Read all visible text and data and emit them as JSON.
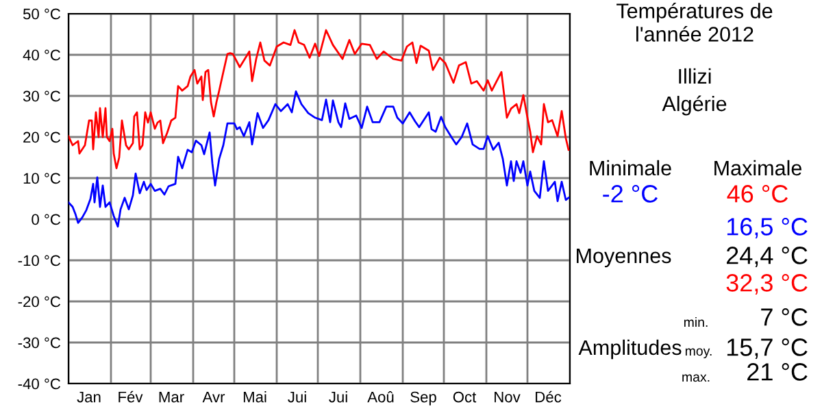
{
  "chart_data": {
    "type": "line",
    "title": "Températures de\nl'année 2012",
    "annotations": [
      "Illizi",
      "Algérie",
      "Minimale",
      "Maximale",
      "-2 °C",
      "46 °C",
      "16,5 °C",
      "Moyennes",
      "24,4 °C",
      "32,3 °C",
      "min.",
      "7 °C",
      "Amplitudes",
      "moy.",
      "15,7 °C",
      "max.",
      "21 °C"
    ],
    "xlim": [
      "2012-01-01",
      "2013-01-01"
    ],
    "ylim": [
      -40,
      50
    ],
    "yticks": [
      {
        "value": -40,
        "label": "-40 °C"
      },
      {
        "value": -30,
        "label": "-30 °C"
      },
      {
        "value": -20,
        "label": "-20 °C"
      },
      {
        "value": -10,
        "label": "-10 °C"
      },
      {
        "value": 0,
        "label": "0 °C"
      },
      {
        "value": 10,
        "label": "10 °C"
      },
      {
        "value": 20,
        "label": "20 °C"
      },
      {
        "value": 30,
        "label": "30 °C"
      },
      {
        "value": 40,
        "label": "40 °C"
      },
      {
        "value": 50,
        "label": "50 °C"
      }
    ],
    "xticks": [
      {
        "value": "2012-01-01",
        "label": null
      },
      {
        "value": "2012-01-16",
        "label": "Jan"
      },
      {
        "value": "2012-02-01",
        "label": null
      },
      {
        "value": "2012-02-15",
        "label": "Fév"
      },
      {
        "value": "2012-03-01",
        "label": null
      },
      {
        "value": "2012-03-16",
        "label": "Mar"
      },
      {
        "value": "2012-04-01",
        "label": null
      },
      {
        "value": "2012-04-16",
        "label": "Avr"
      },
      {
        "value": "2012-05-01",
        "label": null
      },
      {
        "value": "2012-05-16",
        "label": "Mai"
      },
      {
        "value": "2012-06-01",
        "label": null
      },
      {
        "value": "2012-06-16",
        "label": "Jui"
      },
      {
        "value": "2012-07-01",
        "label": null
      },
      {
        "value": "2012-07-16",
        "label": "Jui"
      },
      {
        "value": "2012-08-01",
        "label": null
      },
      {
        "value": "2012-08-16",
        "label": "Aoû"
      },
      {
        "value": "2012-09-01",
        "label": null
      },
      {
        "value": "2012-09-16",
        "label": "Sep"
      },
      {
        "value": "2012-10-01",
        "label": null
      },
      {
        "value": "2012-10-16",
        "label": "Oct"
      },
      {
        "value": "2012-11-01",
        "label": null
      },
      {
        "value": "2012-11-16",
        "label": "Nov"
      },
      {
        "value": "2012-12-01",
        "label": null
      },
      {
        "value": "2012-12-16",
        "label": "Déc"
      },
      {
        "value": "2013-01-01",
        "label": null
      }
    ],
    "grid": true,
    "line_style": "solid",
    "marker": "none",
    "series": [
      {
        "color": "#ff0000",
        "x": [
          "2012-01-01",
          "2012-01-04",
          "2012-01-08",
          "2012-01-09",
          "2012-01-13",
          "2012-01-16",
          "2012-01-18",
          "2012-01-19",
          "2012-01-21",
          "2012-01-23",
          "2012-01-24",
          "2012-01-26",
          "2012-01-28",
          "2012-01-29",
          "2012-01-31",
          "2012-02-02",
          "2012-02-03",
          "2012-02-05",
          "2012-02-07",
          "2012-02-09",
          "2012-02-12",
          "2012-02-14",
          "2012-02-17",
          "2012-02-18",
          "2012-02-20",
          "2012-02-22",
          "2012-02-24",
          "2012-02-26",
          "2012-02-28",
          "2012-03-01",
          "2012-03-04",
          "2012-03-06",
          "2012-03-08",
          "2012-03-10",
          "2012-03-13",
          "2012-03-16",
          "2012-03-19",
          "2012-03-21",
          "2012-03-24",
          "2012-03-28",
          "2012-03-30",
          "2012-04-02",
          "2012-04-04",
          "2012-04-07",
          "2012-04-08",
          "2012-04-10",
          "2012-04-12",
          "2012-04-14",
          "2012-04-16",
          "2012-04-18",
          "2012-04-20",
          "2012-04-23",
          "2012-04-26",
          "2012-04-28",
          "2012-04-30",
          "2012-05-05",
          "2012-05-12",
          "2012-05-14",
          "2012-05-17",
          "2012-05-20",
          "2012-05-23",
          "2012-05-27",
          "2012-06-01",
          "2012-06-06",
          "2012-06-11",
          "2012-06-14",
          "2012-06-17",
          "2012-06-21",
          "2012-06-25",
          "2012-06-29",
          "2012-07-02",
          "2012-07-07",
          "2012-07-12",
          "2012-07-19",
          "2012-07-24",
          "2012-07-28",
          "2012-08-02",
          "2012-08-08",
          "2012-08-13",
          "2012-08-18",
          "2012-08-25",
          "2012-08-31",
          "2012-09-04",
          "2012-09-08",
          "2012-09-11",
          "2012-09-14",
          "2012-09-20",
          "2012-09-23",
          "2012-09-28",
          "2012-10-02",
          "2012-10-08",
          "2012-10-12",
          "2012-10-17",
          "2012-10-21",
          "2012-10-25",
          "2012-10-30",
          "2012-11-02",
          "2012-11-05",
          "2012-11-12",
          "2012-11-14",
          "2012-11-16",
          "2012-11-19",
          "2012-11-23",
          "2012-11-25",
          "2012-11-28",
          "2012-12-01",
          "2012-12-03",
          "2012-12-05",
          "2012-12-08",
          "2012-12-11",
          "2012-12-13",
          "2012-12-16",
          "2012-12-19",
          "2012-12-23",
          "2012-12-26",
          "2012-12-29",
          "2012-12-31"
        ],
        "values": [
          20.2,
          18,
          19,
          16,
          18,
          24,
          24,
          17,
          26,
          20,
          27,
          20,
          27,
          20,
          19,
          22,
          16,
          12.4,
          15,
          24,
          18,
          17,
          18.5,
          25,
          26,
          17,
          18,
          26,
          23.5,
          26,
          22,
          23.5,
          24,
          18.5,
          21,
          24,
          24.7,
          32.4,
          31.3,
          32.4,
          34.7,
          36.3,
          33,
          34.7,
          29,
          35.8,
          36.3,
          28.5,
          25,
          28.5,
          31.3,
          35.8,
          40.2,
          40.4,
          40.2,
          37,
          40.8,
          33.6,
          39,
          43,
          38.6,
          37.4,
          42,
          43,
          42.4,
          46,
          43,
          42.4,
          39.3,
          42.7,
          39.7,
          46,
          42.4,
          39,
          43.6,
          40.2,
          42.7,
          42.4,
          39,
          40.8,
          39,
          38.6,
          42,
          43,
          38,
          42.2,
          41,
          36.3,
          39.3,
          38,
          33.2,
          37.4,
          38.2,
          33,
          33.6,
          31.3,
          33.8,
          31.3,
          35.8,
          30.2,
          24.7,
          26.9,
          28,
          25.8,
          30.2,
          24.7,
          21.3,
          16.3,
          20.2,
          18.2,
          28,
          23.6,
          24.1,
          20.2,
          26.3,
          19.7,
          16.9
        ]
      },
      {
        "color": "#0000ff",
        "x": [
          "2012-01-01",
          "2012-01-04",
          "2012-01-06",
          "2012-01-08",
          "2012-01-11",
          "2012-01-14",
          "2012-01-17",
          "2012-01-19",
          "2012-01-20",
          "2012-01-22",
          "2012-01-24",
          "2012-01-26",
          "2012-01-28",
          "2012-01-31",
          "2012-02-03",
          "2012-02-06",
          "2012-02-08",
          "2012-02-11",
          "2012-02-14",
          "2012-02-17",
          "2012-02-19",
          "2012-02-22",
          "2012-02-25",
          "2012-02-27",
          "2012-03-01",
          "2012-03-04",
          "2012-03-08",
          "2012-03-11",
          "2012-03-14",
          "2012-03-19",
          "2012-03-21",
          "2012-03-24",
          "2012-03-28",
          "2012-03-31",
          "2012-04-03",
          "2012-04-07",
          "2012-04-09",
          "2012-04-13",
          "2012-04-15",
          "2012-04-17",
          "2012-04-20",
          "2012-04-23",
          "2012-04-26",
          "2012-05-01",
          "2012-05-03",
          "2012-05-05",
          "2012-05-08",
          "2012-05-12",
          "2012-05-14",
          "2012-05-18",
          "2012-05-22",
          "2012-05-26",
          "2012-05-31",
          "2012-06-04",
          "2012-06-09",
          "2012-06-12",
          "2012-06-15",
          "2012-06-19",
          "2012-06-24",
          "2012-06-29",
          "2012-07-04",
          "2012-07-07",
          "2012-07-10",
          "2012-07-12",
          "2012-07-16",
          "2012-07-18",
          "2012-07-21",
          "2012-07-24",
          "2012-07-29",
          "2012-08-02",
          "2012-08-06",
          "2012-08-10",
          "2012-08-15",
          "2012-08-20",
          "2012-08-25",
          "2012-08-28",
          "2012-09-01",
          "2012-09-06",
          "2012-09-10",
          "2012-09-13",
          "2012-09-20",
          "2012-09-22",
          "2012-09-25",
          "2012-09-29",
          "2012-10-02",
          "2012-10-07",
          "2012-10-10",
          "2012-10-14",
          "2012-10-18",
          "2012-10-22",
          "2012-10-27",
          "2012-10-30",
          "2012-11-02",
          "2012-11-06",
          "2012-11-10",
          "2012-11-13",
          "2012-11-16",
          "2012-11-19",
          "2012-11-21",
          "2012-11-23",
          "2012-11-26",
          "2012-11-28",
          "2012-12-01",
          "2012-12-03",
          "2012-12-06",
          "2012-12-10",
          "2012-12-13",
          "2012-12-16",
          "2012-12-21",
          "2012-12-23",
          "2012-12-26",
          "2012-12-29",
          "2012-12-31"
        ],
        "values": [
          4.1,
          3,
          1.3,
          -0.9,
          0.4,
          2.2,
          4.9,
          8.6,
          4.1,
          10.2,
          3,
          8.2,
          3,
          4.1,
          0.8,
          -1.8,
          2.4,
          5.2,
          2.4,
          5.8,
          11.1,
          6.3,
          9.1,
          7.1,
          8.6,
          6.9,
          7.4,
          6,
          8,
          8.6,
          15.2,
          12.4,
          16.9,
          16.3,
          19.1,
          18,
          15.8,
          21.1,
          13.6,
          8.2,
          14.7,
          18,
          23.3,
          23.3,
          21.9,
          22.4,
          20.2,
          23.6,
          18.2,
          25.8,
          22.2,
          24.1,
          28,
          26.3,
          28,
          26,
          31.1,
          28,
          25.8,
          24.7,
          24.1,
          29.1,
          23.6,
          28.9,
          23.6,
          22.4,
          28.2,
          24.4,
          25.2,
          22.2,
          27.4,
          23.6,
          23.6,
          27.4,
          27.4,
          24.7,
          23.3,
          26,
          23.8,
          22.4,
          26,
          21.9,
          21.3,
          24.9,
          22.4,
          19.7,
          18.2,
          20,
          23.3,
          18.2,
          17.1,
          17.1,
          20.2,
          16.9,
          18.6,
          14.7,
          8.2,
          14.1,
          9.3,
          14.1,
          11.3,
          14.1,
          8.2,
          11.6,
          6.9,
          5.2,
          14.1,
          6.9,
          9.1,
          4.4,
          9.1,
          4.7,
          5.2
        ]
      }
    ]
  }
}
